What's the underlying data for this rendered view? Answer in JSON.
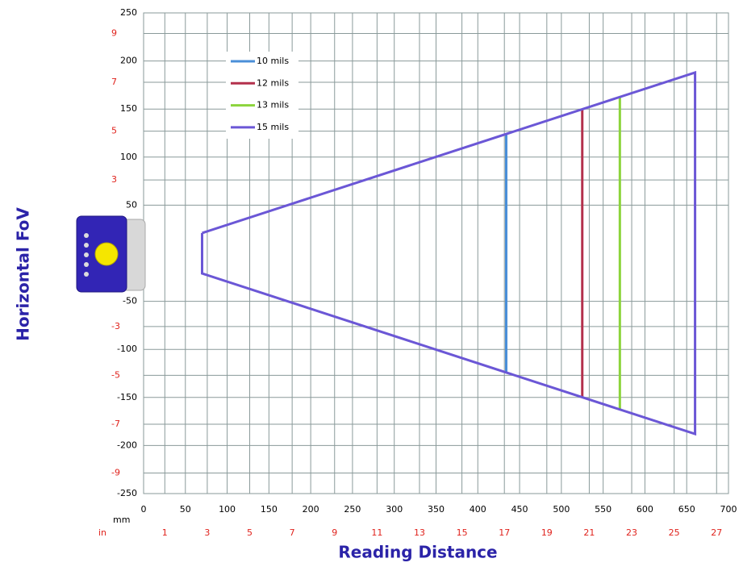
{
  "chart_data": {
    "type": "line",
    "xlabel": "Reading Distance",
    "ylabel": "Horizontal FoV",
    "x_unit_label": "mm",
    "x2_unit_label": "in",
    "xlim": [
      0,
      700
    ],
    "xticks": [
      0,
      50,
      100,
      150,
      200,
      250,
      300,
      350,
      400,
      450,
      500,
      550,
      600,
      650,
      700
    ],
    "ylim": [
      -250,
      250
    ],
    "yticks": [
      -250,
      -200,
      -150,
      -100,
      -50,
      50,
      100,
      150,
      200,
      250
    ],
    "x2lim": [
      0,
      27.56
    ],
    "x2ticks": [
      1,
      3,
      5,
      7,
      9,
      11,
      13,
      15,
      17,
      19,
      21,
      23,
      25,
      27
    ],
    "y2lim": [
      -9.84,
      9.84
    ],
    "y2ticks": [
      -9,
      -7,
      -5,
      -3,
      3,
      5,
      7,
      9
    ],
    "grid": true,
    "series": [
      {
        "name": "10 mils",
        "color": "#4a8fd8",
        "x": [
          434,
          434
        ],
        "y": [
          124,
          -124
        ]
      },
      {
        "name": "12 mils",
        "color": "#b3304c",
        "x": [
          525,
          525
        ],
        "y": [
          150,
          -149
        ]
      },
      {
        "name": "13 mils",
        "color": "#8cd43c",
        "x": [
          570,
          570
        ],
        "y": [
          163,
          -162
        ]
      },
      {
        "name": "15 mils",
        "color": "#6b57d6",
        "x": [
          70,
          660,
          660,
          70,
          70
        ],
        "y": [
          21,
          188,
          -188,
          -21,
          21
        ]
      }
    ]
  }
}
